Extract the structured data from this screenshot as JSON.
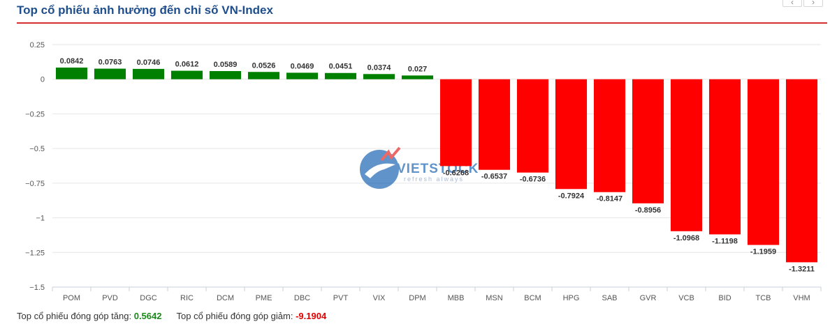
{
  "header": {
    "title": "Top cổ phiếu ảnh hưởng đến chỉ số VN-Index",
    "prev_label": "‹",
    "next_label": "›"
  },
  "watermark": {
    "brand": "VIETSTOCK",
    "tagline": "refresh always"
  },
  "footer": {
    "gain_label": "Top cổ phiếu đóng góp tăng:",
    "gain_value": "0.5642",
    "loss_label": "Top cổ phiếu đóng góp giảm:",
    "loss_value": "-9.1904"
  },
  "colors": {
    "positive": "#008000",
    "negative": "#ff0000",
    "title": "#1f4e8c",
    "accent": "#d32f2f"
  },
  "chart_data": {
    "type": "bar",
    "categories": [
      "POM",
      "PVD",
      "DGC",
      "RIC",
      "DCM",
      "PME",
      "DBC",
      "PVT",
      "VIX",
      "DPM",
      "MBB",
      "MSN",
      "BCM",
      "HPG",
      "SAB",
      "GVR",
      "VCB",
      "BID",
      "TCB",
      "VHM"
    ],
    "values": [
      0.0842,
      0.0763,
      0.0746,
      0.0612,
      0.0589,
      0.0526,
      0.0469,
      0.0451,
      0.0374,
      0.027,
      -0.6268,
      -0.6537,
      -0.6736,
      -0.7924,
      -0.8147,
      -0.8956,
      -1.0968,
      -1.1198,
      -1.1959,
      -1.3211
    ],
    "data_labels": [
      "0.0842",
      "0.0763",
      "0.0746",
      "0.0612",
      "0.0589",
      "0.0526",
      "0.0469",
      "0.0451",
      "0.0374",
      "0.027",
      "-0.6268",
      "-0.6537",
      "-0.6736",
      "-0.7924",
      "-0.8147",
      "-0.8956",
      "-1.0968",
      "-1.1198",
      "-1.1959",
      "-1.3211"
    ],
    "ylim": [
      -1.5,
      0.25
    ],
    "yticks": [
      0.25,
      0,
      -0.25,
      -0.5,
      -0.75,
      -1,
      -1.25,
      -1.5
    ],
    "ytick_labels": [
      "0.25",
      "0",
      "−0.25",
      "−0.5",
      "−0.75",
      "−1",
      "−1.25",
      "−1.5"
    ],
    "grid": true,
    "legend": "none"
  }
}
